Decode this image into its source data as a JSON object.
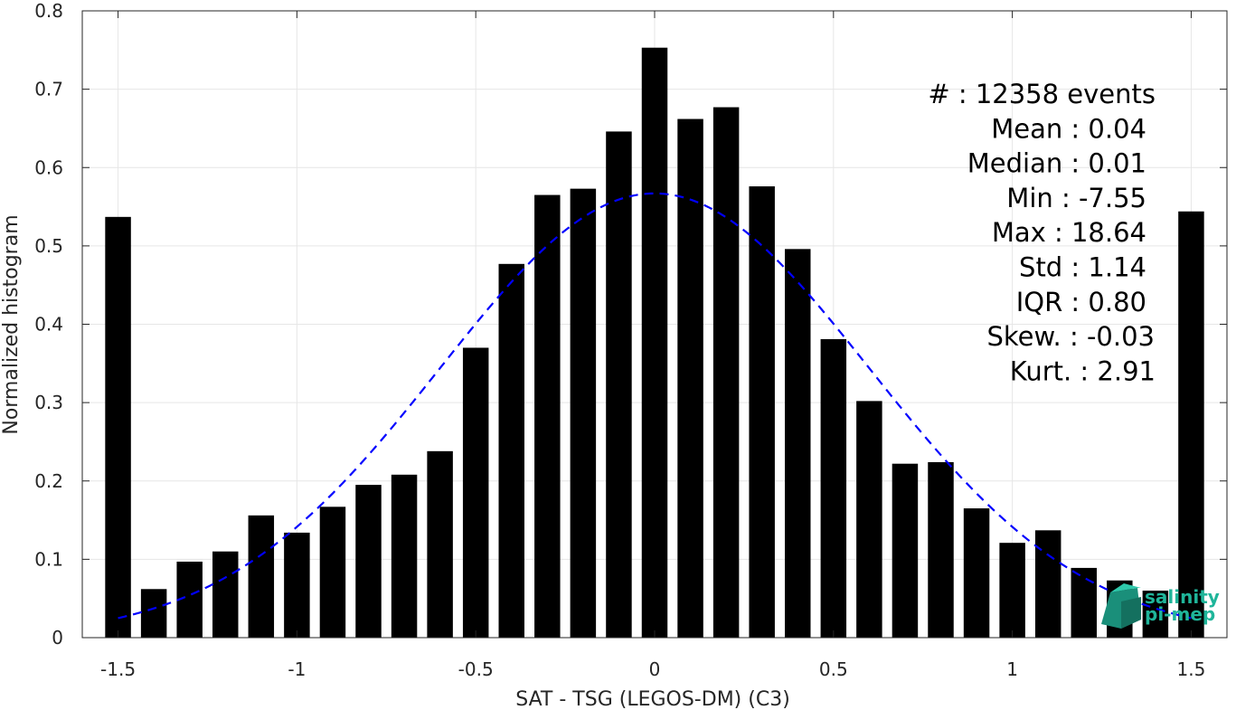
{
  "chart_data": {
    "type": "bar",
    "xlabel": "SAT - TSG (LEGOS-DM) (C3)",
    "ylabel": "Normalized histogram",
    "xlim": [
      -1.6,
      1.6
    ],
    "ylim": [
      0,
      0.8
    ],
    "xticks": [
      -1.5,
      -1,
      -0.5,
      0,
      0.5,
      1,
      1.5
    ],
    "xtick_labels": [
      "-1.5",
      "-1",
      "-0.5",
      "0",
      "0.5",
      "1",
      "1.5"
    ],
    "yticks": [
      0,
      0.1,
      0.2,
      0.3,
      0.4,
      0.5,
      0.6,
      0.7,
      0.8
    ],
    "ytick_labels": [
      "0",
      "0.1",
      "0.2",
      "0.3",
      "0.4",
      "0.5",
      "0.6",
      "0.7",
      "0.8"
    ],
    "grid": true,
    "bin_width": 0.1,
    "bar_color": "#000000",
    "bars": {
      "x": [
        -1.5,
        -1.4,
        -1.3,
        -1.2,
        -1.1,
        -1.0,
        -0.9,
        -0.8,
        -0.7,
        -0.6,
        -0.5,
        -0.4,
        -0.3,
        -0.2,
        -0.1,
        0.0,
        0.1,
        0.2,
        0.3,
        0.4,
        0.5,
        0.6,
        0.7,
        0.8,
        0.9,
        1.0,
        1.1,
        1.2,
        1.3,
        1.4,
        1.5
      ],
      "values": [
        0.537,
        0.062,
        0.097,
        0.11,
        0.156,
        0.134,
        0.167,
        0.195,
        0.208,
        0.238,
        0.37,
        0.477,
        0.565,
        0.573,
        0.646,
        0.753,
        0.662,
        0.677,
        0.576,
        0.496,
        0.381,
        0.302,
        0.222,
        0.224,
        0.165,
        0.121,
        0.137,
        0.089,
        0.073,
        0.06,
        0.544
      ]
    },
    "fit_curve": {
      "type": "gaussian",
      "mean": 0.0,
      "peak": 0.567,
      "sigma": 0.6,
      "x_range": [
        -1.5,
        1.5
      ],
      "color": "#0000ff",
      "style": "dashed"
    },
    "annotation": {
      "lines": [
        "#  : 12358 events",
        "Mean : 0.04",
        "Median : 0.01",
        "Min : -7.55",
        "Max : 18.64",
        "Std : 1.14",
        "IQR : 0.80",
        "Skew. : -0.03",
        "Kurt. : 2.91"
      ]
    },
    "logo": {
      "line1": "salinity",
      "line2": "pi-mep",
      "color": "#1fb59a"
    }
  }
}
